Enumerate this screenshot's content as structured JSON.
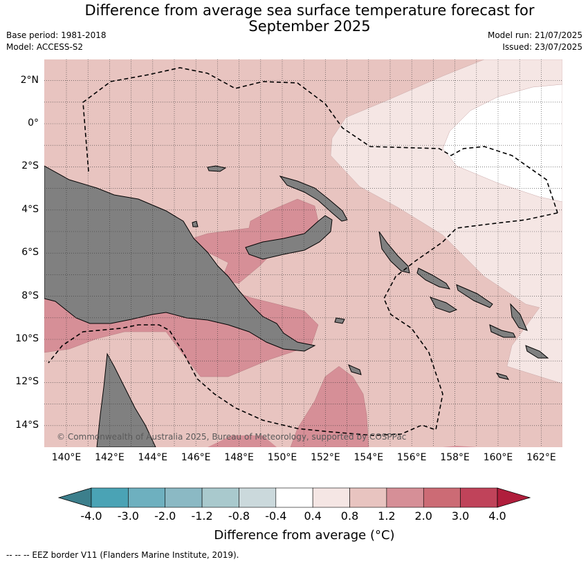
{
  "title": "Difference from average sea surface temperature forecast for September 2025",
  "title_line1": "Difference from average sea surface temperature forecast for",
  "title_line2": "September 2025",
  "base_period": "Base period: 1981-2018",
  "model": "Model: ACCESS-S2",
  "model_run": "Model run: 21/07/2025",
  "issued": "Issued: 23/07/2025",
  "copyright": "© Commonwealth of Australia 2025, Bureau of Meteorology, supported by COSPPac",
  "lat_labels": [
    "2°N",
    "0°",
    "2°S",
    "4°S",
    "6°S",
    "8°S",
    "10°S",
    "12°S",
    "14°S"
  ],
  "lon_labels": [
    "140°E",
    "142°E",
    "144°E",
    "146°E",
    "148°E",
    "150°E",
    "152°E",
    "154°E",
    "156°E",
    "158°E",
    "160°E",
    "162°E"
  ],
  "colorbar": {
    "label": "Difference from average ($^\\circ$C)",
    "label_display": "Difference from average (°C)",
    "ticks": [
      "-4.0",
      "-3.0",
      "-2.0",
      "-1.2",
      "-0.8",
      "-0.4",
      "0.4",
      "0.8",
      "1.2",
      "2.0",
      "3.0",
      "4.0"
    ],
    "colors": [
      "#3c7f8c",
      "#4aa3b5",
      "#6eb0bf",
      "#8bb9c4",
      "#a9c9cd",
      "#cbd9dc",
      "#ffffff",
      "#f5e6e4",
      "#e8c4c0",
      "#d68f97",
      "#cc6b75",
      "#c0435a",
      "#b01e3c"
    ]
  },
  "legend_footer": "--  --  -- EEZ border V11 (Flanders Marine Institute, 2019).",
  "colors": {
    "land": "#808080",
    "anom_0_4_0_8": "#f5e6e4",
    "anom_0_8_1_2": "#e8c4c0",
    "anom_1_2_2_0": "#d68f97",
    "anom_neutral": "#ffffff"
  }
}
